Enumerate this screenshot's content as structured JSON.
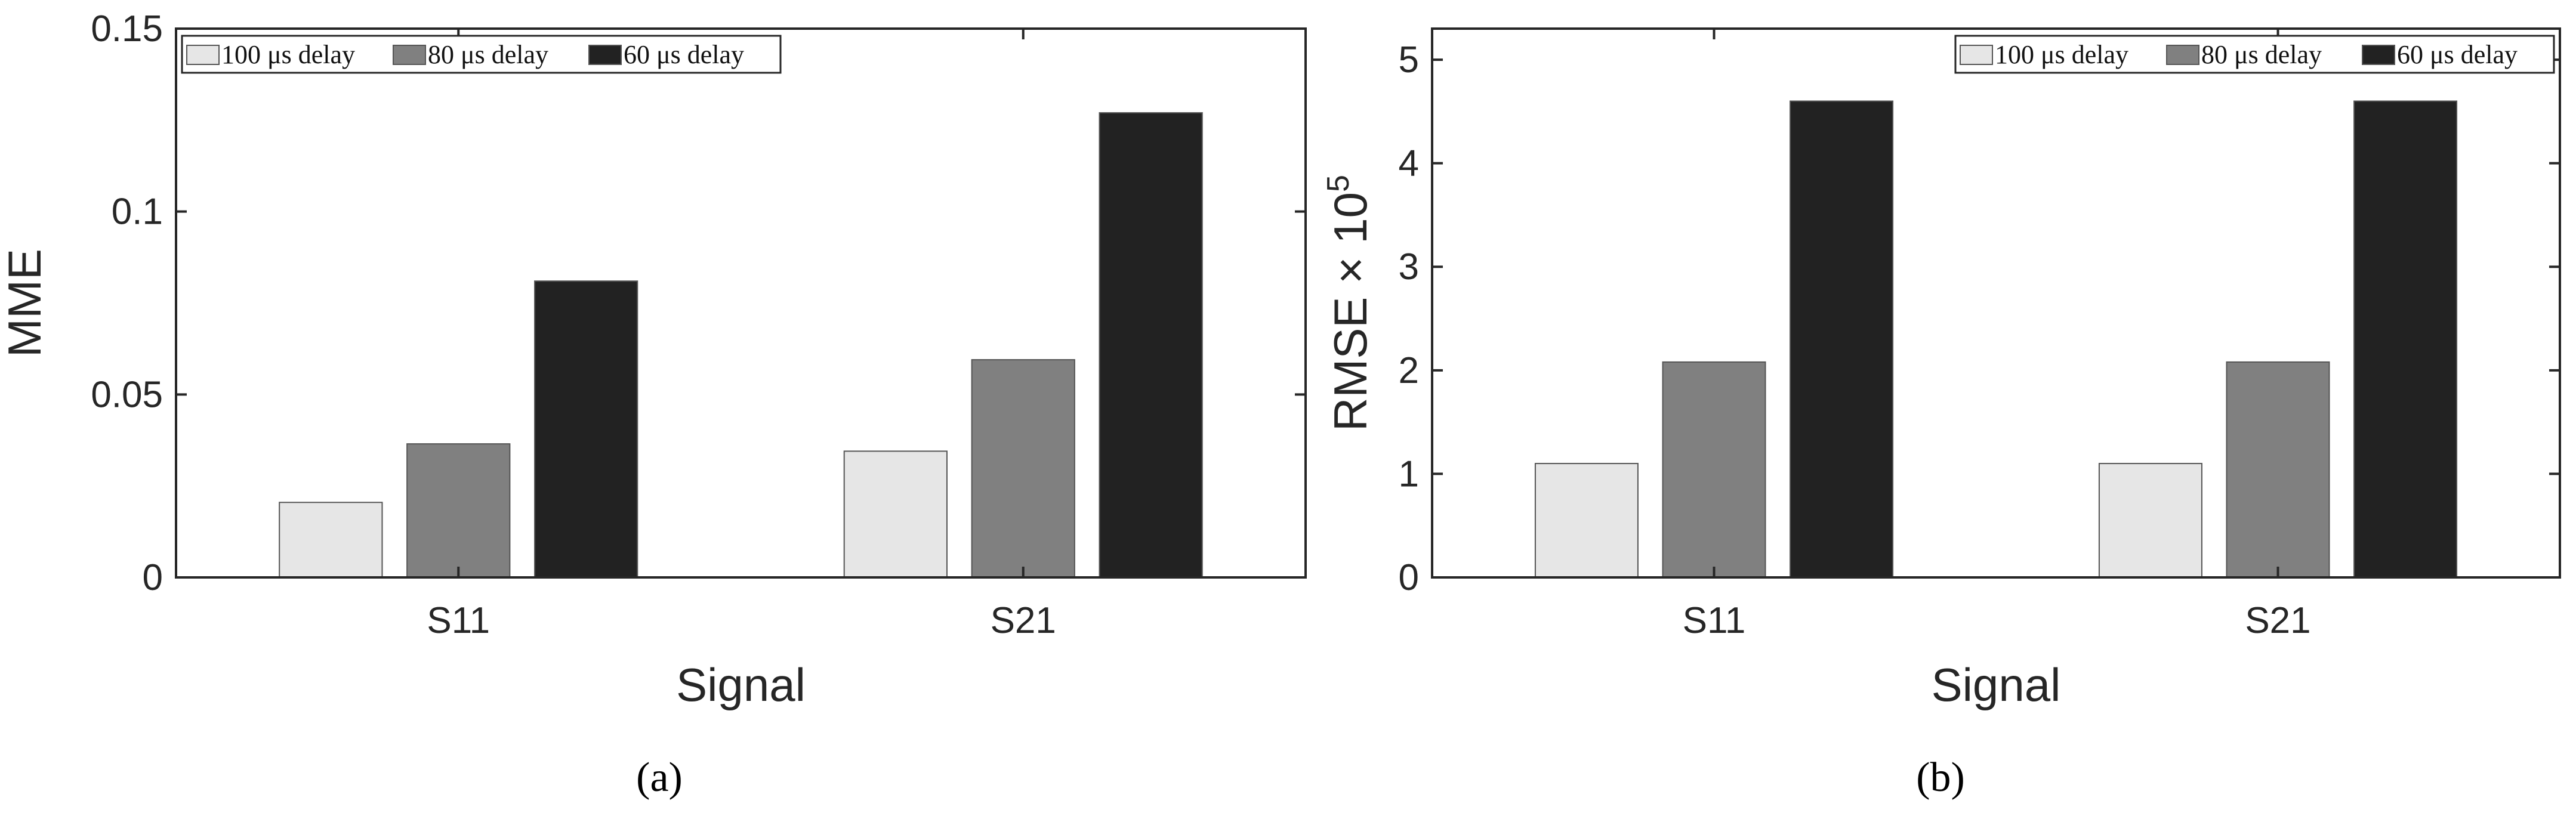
{
  "figure": {
    "panel_labels": [
      "(a)",
      "(b)"
    ]
  },
  "chart_data": [
    {
      "type": "bar",
      "categories": [
        "S11",
        "S21"
      ],
      "series": [
        {
          "name": "100 μs delay",
          "values": [
            0.0205,
            0.0345
          ],
          "color": "#e6e6e6"
        },
        {
          "name": "80 μs delay",
          "values": [
            0.0365,
            0.0595
          ],
          "color": "#808080"
        },
        {
          "name": "60 μs delay",
          "values": [
            0.081,
            0.127
          ],
          "color": "#222222"
        }
      ],
      "title": "",
      "xlabel": "Signal",
      "ylabel": "MME",
      "ylabel_suffix": "",
      "ylabel_exponent": "",
      "ylim": [
        0,
        0.15
      ],
      "yticks": [
        0,
        0.05,
        0.1,
        0.15
      ],
      "ytick_labels": [
        "0",
        "0.05",
        "0.1",
        "0.15"
      ],
      "legend": {
        "placement": "top-left",
        "orientation": "horizontal"
      },
      "grid": false
    },
    {
      "type": "bar",
      "categories": [
        "S11",
        "S21"
      ],
      "series": [
        {
          "name": "100 μs delay",
          "values": [
            1.1,
            1.1
          ],
          "color": "#e6e6e6"
        },
        {
          "name": "80 μs delay",
          "values": [
            2.08,
            2.08
          ],
          "color": "#808080"
        },
        {
          "name": "60 μs delay",
          "values": [
            4.6,
            4.6
          ],
          "color": "#222222"
        }
      ],
      "title": "",
      "xlabel": "Signal",
      "ylabel": "RMSE",
      "ylabel_suffix": " × 10",
      "ylabel_exponent": "5",
      "ylim": [
        0,
        5.3
      ],
      "yticks": [
        0,
        1,
        2,
        3,
        4,
        5
      ],
      "ytick_labels": [
        "0",
        "1",
        "2",
        "3",
        "4",
        "5"
      ],
      "legend": {
        "placement": "top-right",
        "orientation": "horizontal"
      },
      "grid": false
    }
  ]
}
